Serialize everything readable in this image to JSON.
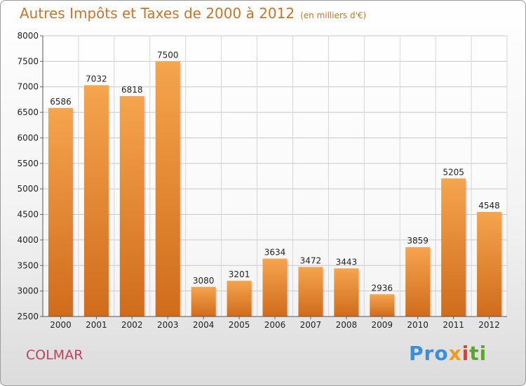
{
  "title": "Autres Impôts et Taxes de 2000 à 2012",
  "unit_label": "(en milliers d'€)",
  "city": "COLMAR",
  "brand": {
    "part1": "Pro",
    "part2": "x",
    "part3": "i",
    "part4": "ti"
  },
  "colors": {
    "bar_top": "#f6a44e",
    "bar_bottom": "#cf6c1b",
    "title": "#c8742a",
    "city": "#c0405a"
  },
  "chart_data": {
    "type": "bar",
    "categories": [
      "2000",
      "2001",
      "2002",
      "2003",
      "2004",
      "2005",
      "2006",
      "2007",
      "2008",
      "2009",
      "2010",
      "2011",
      "2012"
    ],
    "values": [
      6586,
      7032,
      6818,
      7500,
      3080,
      3201,
      3634,
      3472,
      3443,
      2936,
      3859,
      5205,
      4548
    ],
    "ylim": [
      2500,
      8000
    ],
    "yticks": [
      2500,
      3000,
      3500,
      4000,
      4500,
      5000,
      5500,
      6000,
      6500,
      7000,
      7500,
      8000
    ],
    "grid": true,
    "title": "Autres Impôts et Taxes de 2000 à 2012",
    "xlabel": "",
    "ylabel": ""
  }
}
